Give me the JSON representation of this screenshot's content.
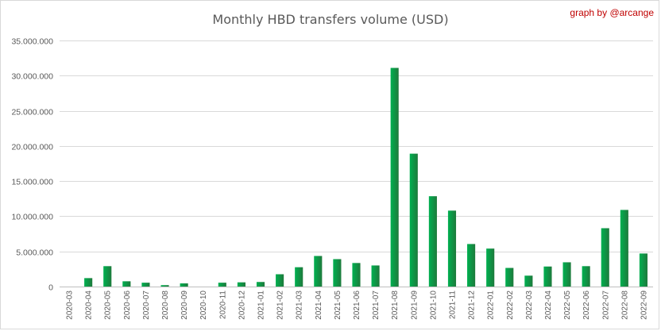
{
  "chart_data": {
    "type": "bar",
    "title": "Monthly HBD transfers volume (USD)",
    "credit": "graph by @arcange",
    "xlabel": "",
    "ylabel": "",
    "ylim": [
      0,
      35000000
    ],
    "yticks": [
      0,
      5000000,
      10000000,
      15000000,
      20000000,
      25000000,
      30000000,
      35000000
    ],
    "ytick_labels": [
      "0",
      "5.000.000",
      "10.000.000",
      "15.000.000",
      "20.000.000",
      "25.000.000",
      "30.000.000",
      "35.000.000"
    ],
    "grid": true,
    "legend": "none",
    "categories": [
      "2020-03",
      "2020-04",
      "2020-05",
      "2020-06",
      "2020-07",
      "2020-08",
      "2020-09",
      "2020-10",
      "2020-11",
      "2020-12",
      "2021-01",
      "2021-02",
      "2021-03",
      "2021-04",
      "2021-05",
      "2021-06",
      "2021-07",
      "2021-08",
      "2021-09",
      "2021-10",
      "2021-11",
      "2021-12",
      "2022-01",
      "2022-02",
      "2022-03",
      "2022-04",
      "2022-05",
      "2022-06",
      "2022-07",
      "2022-08",
      "2022-09"
    ],
    "values": [
      0,
      1200000,
      2900000,
      750000,
      550000,
      200000,
      450000,
      0,
      550000,
      600000,
      650000,
      1750000,
      2750000,
      4350000,
      3900000,
      3350000,
      3000000,
      31100000,
      18900000,
      12850000,
      10800000,
      6050000,
      5400000,
      2650000,
      1550000,
      2850000,
      3450000,
      2900000,
      8300000,
      10900000,
      4700000
    ],
    "colors": {
      "bar_light": "#00b050",
      "bar_dark": "#1e7a3c",
      "grid": "#d9d9d9",
      "text": "#595959",
      "credit": "#c00000"
    }
  }
}
